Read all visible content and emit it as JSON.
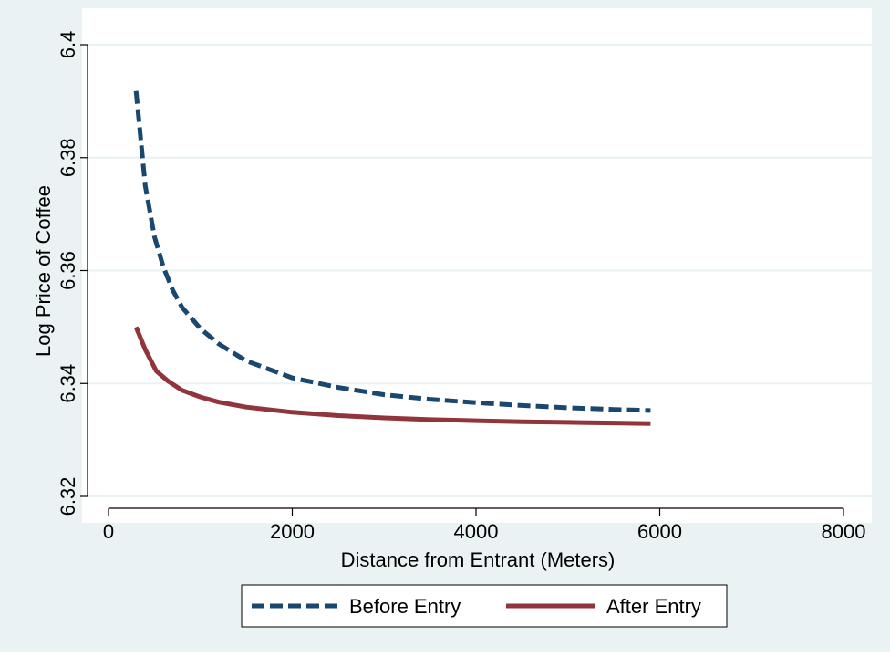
{
  "chart_data": {
    "type": "line",
    "title": "",
    "xlabel": "Distance from Entrant (Meters)",
    "ylabel": "Log Price of Coffee",
    "xlim": [
      0,
      8000
    ],
    "ylim": [
      6.32,
      6.4
    ],
    "xticks": [
      0,
      2000,
      4000,
      6000,
      8000
    ],
    "yticks": [
      6.32,
      6.34,
      6.36,
      6.38,
      6.4
    ],
    "xtick_labels": [
      "0",
      "2000",
      "4000",
      "6000",
      "8000"
    ],
    "ytick_labels": [
      "6.32",
      "6.34",
      "6.36",
      "6.38",
      "6.4"
    ],
    "grid": "horizontal",
    "legend_position": "bottom",
    "colors": {
      "outer_background": "#eaf2f3",
      "plot_background": "#ffffff",
      "grid": "#eaf2f3",
      "axis": "#000000"
    },
    "series": [
      {
        "name": "Before Entry",
        "color": "#1a476f",
        "dash": "dashed",
        "x": [
          300,
          400,
          500,
          600,
          700,
          800,
          1000,
          1200,
          1500,
          2000,
          2500,
          3000,
          3500,
          4000,
          4500,
          5000,
          5500,
          5900
        ],
        "y": [
          6.3918,
          6.375,
          6.366,
          6.3605,
          6.3565,
          6.3535,
          6.3497,
          6.347,
          6.344,
          6.341,
          6.3393,
          6.338,
          6.3372,
          6.3366,
          6.3361,
          6.3357,
          6.3354,
          6.3352
        ]
      },
      {
        "name": "After Entry",
        "color": "#90353b",
        "dash": "solid",
        "x": [
          300,
          400,
          520,
          650,
          800,
          1000,
          1200,
          1500,
          2000,
          2500,
          3000,
          3500,
          4000,
          4500,
          5000,
          5500,
          5900
        ],
        "y": [
          6.35,
          6.346,
          6.3422,
          6.3404,
          6.3388,
          6.3376,
          6.3367,
          6.3358,
          6.3349,
          6.3343,
          6.3339,
          6.3336,
          6.3334,
          6.3332,
          6.3331,
          6.333,
          6.3329
        ]
      }
    ]
  }
}
